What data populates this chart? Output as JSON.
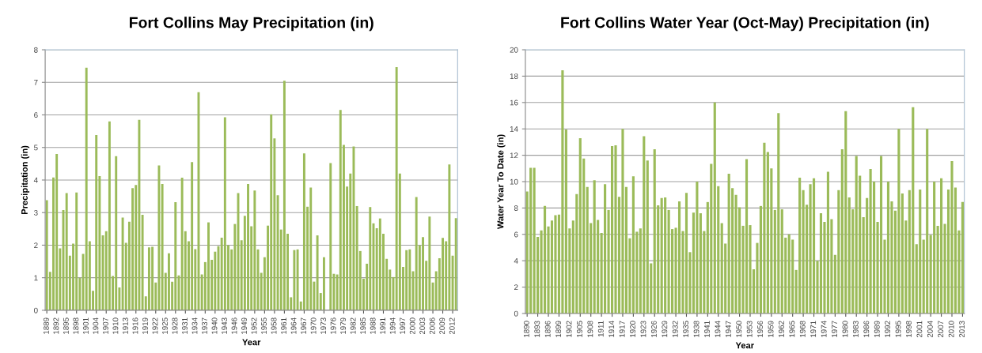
{
  "chart_data": [
    {
      "type": "bar",
      "title": "Fort Collins May Precipitation (in)",
      "xlabel": "Year",
      "ylabel": "Precipitation (in)",
      "color": "#9bbb59",
      "ylim": [
        0,
        8
      ],
      "yticks": [
        0,
        1,
        2,
        3,
        4,
        5,
        6,
        7,
        8
      ],
      "grid": "y",
      "legend": false,
      "categories": [
        "1889",
        null,
        null,
        "1892",
        null,
        null,
        "1895",
        null,
        null,
        "1898",
        null,
        null,
        "1901",
        null,
        null,
        "1904",
        null,
        null,
        "1907",
        null,
        null,
        "1910",
        null,
        null,
        "1913",
        null,
        null,
        "1916",
        null,
        null,
        "1919",
        null,
        null,
        "1922",
        null,
        null,
        "1925",
        null,
        null,
        "1928",
        null,
        null,
        "1931",
        null,
        null,
        "1934",
        null,
        null,
        "1937",
        null,
        null,
        "1940",
        null,
        null,
        "1943",
        null,
        null,
        "1946",
        null,
        null,
        "1949",
        null,
        null,
        "1952",
        null,
        null,
        "1955",
        null,
        null,
        "1958",
        null,
        null,
        "1961",
        null,
        null,
        "1964",
        null,
        null,
        "1967",
        null,
        null,
        "1970",
        null,
        null,
        "1973",
        null,
        null,
        "1976",
        null,
        null,
        "1979",
        null,
        null,
        "1982",
        null,
        null,
        "1985",
        null,
        null,
        "1988",
        null,
        null,
        "1991",
        null,
        null,
        "1994",
        null,
        null,
        "1997",
        null,
        null,
        "2000",
        null,
        null,
        "2003",
        null,
        null,
        "2006",
        null,
        null,
        "2009",
        null,
        null,
        "2012",
        null
      ],
      "values": [
        3.38,
        1.18,
        4.08,
        4.8,
        1.9,
        3.08,
        3.6,
        1.68,
        2.05,
        3.62,
        1.0,
        1.73,
        7.45,
        2.12,
        0.6,
        5.38,
        4.12,
        2.3,
        2.43,
        5.8,
        1.05,
        4.73,
        0.7,
        2.85,
        2.07,
        2.72,
        3.75,
        3.85,
        5.85,
        2.93,
        0.43,
        1.93,
        1.95,
        0.85,
        4.45,
        3.88,
        1.15,
        1.75,
        0.88,
        3.32,
        1.07,
        4.07,
        2.43,
        2.12,
        4.55,
        1.88,
        6.7,
        1.1,
        1.48,
        2.7,
        1.55,
        1.8,
        1.97,
        2.23,
        5.93,
        2.0,
        1.87,
        2.65,
        3.6,
        2.15,
        2.9,
        3.88,
        2.58,
        3.68,
        1.87,
        1.15,
        1.63,
        2.6,
        6.02,
        5.28,
        3.53,
        2.48,
        7.05,
        2.35,
        0.4,
        1.85,
        1.87,
        0.27,
        4.82,
        3.18,
        3.77,
        0.88,
        2.3,
        0.53,
        1.63,
        0,
        4.52,
        1.12,
        1.1,
        6.15,
        5.08,
        3.8,
        4.2,
        5.03,
        3.2,
        1.82,
        0.97,
        1.43,
        3.17,
        2.67,
        2.52,
        2.82,
        2.35,
        1.58,
        1.25,
        1.02,
        7.47,
        4.2,
        1.33,
        1.85,
        1.87,
        1.2,
        3.48,
        2.0,
        2.25,
        1.52,
        2.88,
        0.85,
        1.2,
        1.6,
        2.22,
        2.12,
        4.48,
        1.68,
        2.83
      ]
    },
    {
      "type": "bar",
      "title": "Fort Collins Water Year (Oct-May) Precipitation (in)",
      "xlabel": "Year",
      "ylabel": "Water Year To Date (in)",
      "color": "#9bbb59",
      "ylim": [
        0,
        20
      ],
      "yticks": [
        0,
        2,
        4,
        6,
        8,
        10,
        12,
        14,
        16,
        18,
        20
      ],
      "grid": "y",
      "legend": false,
      "categories": [
        "1890",
        null,
        null,
        "1893",
        null,
        null,
        "1896",
        null,
        null,
        "1899",
        null,
        null,
        "1902",
        null,
        null,
        "1905",
        null,
        null,
        "1908",
        null,
        null,
        "1911",
        null,
        null,
        "1914",
        null,
        null,
        "1917",
        null,
        null,
        "1920",
        null,
        null,
        "1923",
        null,
        null,
        "1926",
        null,
        null,
        "1929",
        null,
        null,
        "1932",
        null,
        null,
        "1935",
        null,
        null,
        "1938",
        null,
        null,
        "1941",
        null,
        null,
        "1944",
        null,
        null,
        "1947",
        null,
        null,
        "1950",
        null,
        null,
        "1953",
        null,
        null,
        "1956",
        null,
        null,
        "1959",
        null,
        null,
        "1962",
        null,
        null,
        "1965",
        null,
        null,
        "1968",
        null,
        null,
        "1971",
        null,
        null,
        "1974",
        null,
        null,
        "1977",
        null,
        null,
        "1980",
        null,
        null,
        "1983",
        null,
        null,
        "1986",
        null,
        null,
        "1989",
        null,
        null,
        "1992",
        null,
        null,
        "1995",
        null,
        null,
        "1998",
        null,
        null,
        "2001",
        null,
        null,
        "2004",
        null,
        null,
        "2007",
        null,
        null,
        "2010",
        null,
        null,
        "2013"
      ],
      "values": [
        9.25,
        11.05,
        11.05,
        5.8,
        6.3,
        8.15,
        6.6,
        7.05,
        7.45,
        7.5,
        18.45,
        13.95,
        6.45,
        7.05,
        9.05,
        13.3,
        11.75,
        9.6,
        6.85,
        10.1,
        7.1,
        6.1,
        9.8,
        7.85,
        12.7,
        12.75,
        8.85,
        14.0,
        9.6,
        5.7,
        10.4,
        6.2,
        6.45,
        13.45,
        11.6,
        3.8,
        12.45,
        8.2,
        8.75,
        8.8,
        7.85,
        6.4,
        6.5,
        8.5,
        6.25,
        9.15,
        4.65,
        7.65,
        10.0,
        7.6,
        6.25,
        8.45,
        11.35,
        16.0,
        9.65,
        6.85,
        5.3,
        10.6,
        9.5,
        9.0,
        8.05,
        6.65,
        11.7,
        6.7,
        3.35,
        5.35,
        8.15,
        12.95,
        12.25,
        11.0,
        7.85,
        15.2,
        7.9,
        5.75,
        6.0,
        5.6,
        3.3,
        10.3,
        9.35,
        8.25,
        9.8,
        10.25,
        4.0,
        7.6,
        6.95,
        10.75,
        7.15,
        4.45,
        9.35,
        12.45,
        15.35,
        8.8,
        7.9,
        11.95,
        10.45,
        7.3,
        8.75,
        10.95,
        10.0,
        6.95,
        11.95,
        5.6,
        10.0,
        8.5,
        7.8,
        14.0,
        9.1,
        7.05,
        9.35,
        15.65,
        5.25,
        9.4,
        5.6,
        14.0,
        5.95,
        10.0,
        6.65,
        10.25,
        6.8,
        9.4,
        11.55,
        9.55,
        6.3,
        8.45
      ]
    }
  ]
}
